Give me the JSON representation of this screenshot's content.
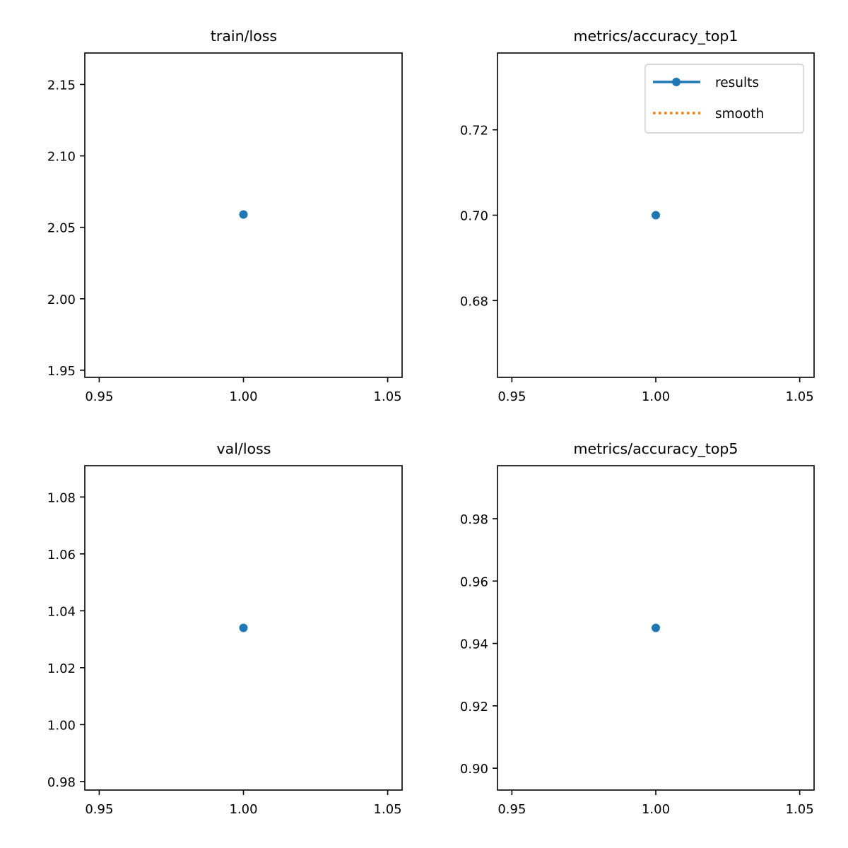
{
  "colors": {
    "results": "#1f77b4",
    "smooth": "#ff7f0e",
    "axes": "#000000",
    "background": "#ffffff"
  },
  "chart_data": [
    {
      "type": "scatter",
      "title": "train/loss",
      "x": [
        1.0
      ],
      "series": [
        {
          "name": "results",
          "values": [
            2.059
          ]
        }
      ],
      "xlim": [
        0.945,
        1.055
      ],
      "ylim": [
        1.945,
        2.172
      ],
      "xticks": [
        0.95,
        1.0,
        1.05
      ],
      "xtick_labels": [
        "0.95",
        "1.00",
        "1.05"
      ],
      "yticks": [
        1.95,
        2.0,
        2.05,
        2.1,
        2.15
      ],
      "ytick_labels": [
        "1.95",
        "2.00",
        "2.05",
        "2.10",
        "2.15"
      ],
      "grid": false
    },
    {
      "type": "scatter",
      "title": "metrics/accuracy_top1",
      "x": [
        1.0
      ],
      "series": [
        {
          "name": "results",
          "values": [
            0.7
          ]
        },
        {
          "name": "smooth",
          "values": []
        }
      ],
      "xlim": [
        0.945,
        1.055
      ],
      "ylim": [
        0.662,
        0.738
      ],
      "xticks": [
        0.95,
        1.0,
        1.05
      ],
      "xtick_labels": [
        "0.95",
        "1.00",
        "1.05"
      ],
      "yticks": [
        0.68,
        0.7,
        0.72
      ],
      "ytick_labels": [
        "0.68",
        "0.70",
        "0.72"
      ],
      "grid": false,
      "legend": {
        "placement": "top-right",
        "entries": [
          {
            "label": "results",
            "style": "solid-marker",
            "color_key": "results"
          },
          {
            "label": "smooth",
            "style": "dotted",
            "color_key": "smooth"
          }
        ]
      }
    },
    {
      "type": "scatter",
      "title": "val/loss",
      "x": [
        1.0
      ],
      "series": [
        {
          "name": "results",
          "values": [
            1.034
          ]
        }
      ],
      "xlim": [
        0.945,
        1.055
      ],
      "ylim": [
        0.977,
        1.091
      ],
      "xticks": [
        0.95,
        1.0,
        1.05
      ],
      "xtick_labels": [
        "0.95",
        "1.00",
        "1.05"
      ],
      "yticks": [
        0.98,
        1.0,
        1.02,
        1.04,
        1.06,
        1.08
      ],
      "ytick_labels": [
        "0.98",
        "1.00",
        "1.02",
        "1.04",
        "1.06",
        "1.08"
      ],
      "grid": false
    },
    {
      "type": "scatter",
      "title": "metrics/accuracy_top5",
      "x": [
        1.0
      ],
      "series": [
        {
          "name": "results",
          "values": [
            0.945
          ]
        }
      ],
      "xlim": [
        0.945,
        1.055
      ],
      "ylim": [
        0.893,
        0.997
      ],
      "xticks": [
        0.95,
        1.0,
        1.05
      ],
      "xtick_labels": [
        "0.95",
        "1.00",
        "1.05"
      ],
      "yticks": [
        0.9,
        0.92,
        0.94,
        0.96,
        0.98
      ],
      "ytick_labels": [
        "0.90",
        "0.92",
        "0.94",
        "0.96",
        "0.98"
      ],
      "grid": false
    }
  ]
}
